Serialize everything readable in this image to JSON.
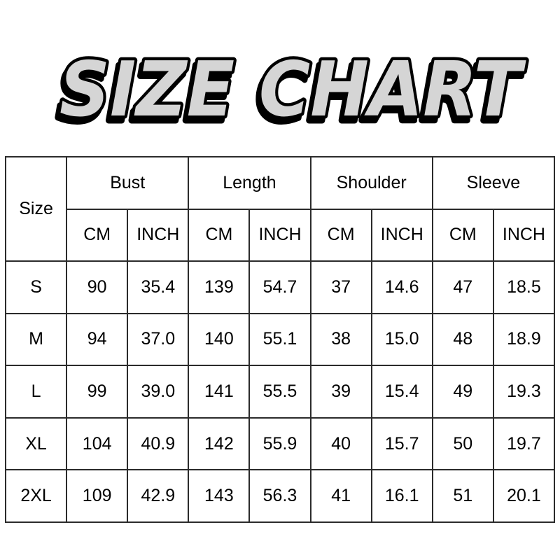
{
  "title": "SIZE CHART",
  "colors": {
    "title_fill": "#d5d5d5",
    "title_outline": "#000000",
    "title_shadow": "#000000",
    "table_border": "#2b2b2b",
    "text": "#000000",
    "background": "#ffffff"
  },
  "chart_data": {
    "type": "table",
    "title": "SIZE CHART",
    "size_column_label": "Size",
    "column_groups": [
      {
        "label": "Bust"
      },
      {
        "label": "Length"
      },
      {
        "label": "Shoulder"
      },
      {
        "label": "Sleeve"
      }
    ],
    "unit_labels": {
      "cm": "CM",
      "inch": "INCH"
    },
    "columns": [
      "Size",
      "Bust CM",
      "Bust INCH",
      "Length CM",
      "Length INCH",
      "Shoulder CM",
      "Shoulder INCH",
      "Sleeve CM",
      "Sleeve INCH"
    ],
    "rows": [
      {
        "size": "S",
        "values": [
          "90",
          "35.4",
          "139",
          "54.7",
          "37",
          "14.6",
          "47",
          "18.5"
        ]
      },
      {
        "size": "M",
        "values": [
          "94",
          "37.0",
          "140",
          "55.1",
          "38",
          "15.0",
          "48",
          "18.9"
        ]
      },
      {
        "size": "L",
        "values": [
          "99",
          "39.0",
          "141",
          "55.5",
          "39",
          "15.4",
          "49",
          "19.3"
        ]
      },
      {
        "size": "XL",
        "values": [
          "104",
          "40.9",
          "142",
          "55.9",
          "40",
          "15.7",
          "50",
          "19.7"
        ]
      },
      {
        "size": "2XL",
        "values": [
          "109",
          "42.9",
          "143",
          "56.3",
          "41",
          "16.1",
          "51",
          "20.1"
        ]
      }
    ]
  }
}
